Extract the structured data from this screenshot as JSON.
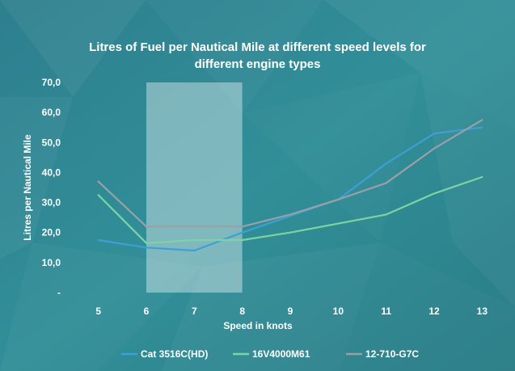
{
  "chart_data": {
    "type": "line",
    "title_lines": [
      "Litres of Fuel per Nautical Mile at different speed levels for",
      "different engine types"
    ],
    "xlabel": "Speed in knots",
    "ylabel": "Litres per Nautical Mile",
    "x": [
      5,
      6,
      7,
      8,
      9,
      10,
      11,
      12,
      13
    ],
    "x_tick_labels": [
      "5",
      "6",
      "7",
      "8",
      "9",
      "10",
      "11",
      "12",
      "13"
    ],
    "y_tick_labels": [
      "-",
      "10,0",
      "20,0",
      "30,0",
      "40,0",
      "50,0",
      "60,0",
      "70,0"
    ],
    "ylim": [
      0,
      70
    ],
    "highlight_range": [
      6,
      8
    ],
    "grid": false,
    "legend_position": "bottom",
    "series": [
      {
        "name": "Cat 3516C(HD)",
        "color": "#3d9fd4",
        "values": [
          17.5,
          15.0,
          14.0,
          20.0,
          25.5,
          31.0,
          43.0,
          53.0,
          55.0
        ]
      },
      {
        "name": "16V4000M61",
        "color": "#7ed3a2",
        "values": [
          32.5,
          16.5,
          17.5,
          17.5,
          20.0,
          23.0,
          26.0,
          33.0,
          38.5
        ]
      },
      {
        "name": "12-710-G7C",
        "color": "#9aa0a6",
        "values": [
          37.0,
          22.0,
          22.0,
          22.0,
          26.0,
          31.0,
          36.5,
          48.0,
          57.5
        ]
      }
    ]
  }
}
